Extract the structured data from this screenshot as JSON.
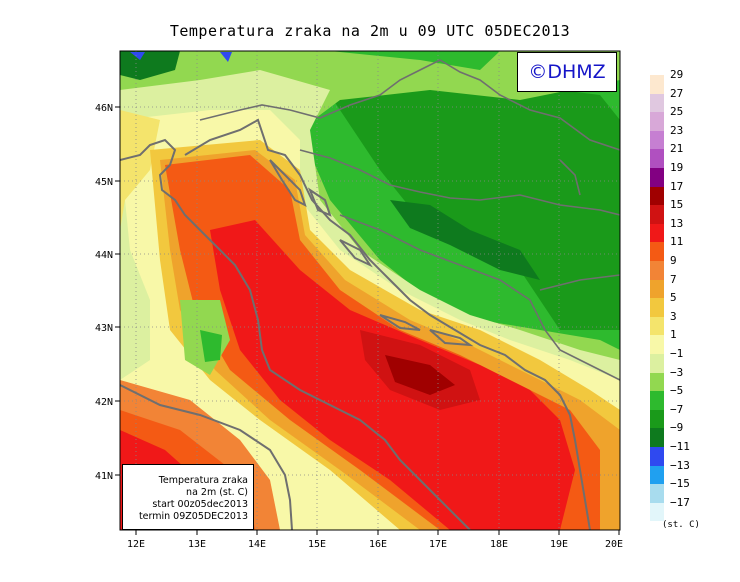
{
  "map": {
    "title": "Temperatura zraka na 2m u 09 UTC 05DEC2013",
    "logo": "©DHMZ",
    "info_box": {
      "line1": "Temperatura zraka",
      "line2": "na 2m (st. C)",
      "line3": "start 00z05dec2013",
      "line4": "termin 09Z05DEC2013"
    },
    "lat_labels": [
      "46N",
      "45N",
      "44N",
      "43N",
      "42N",
      "41N"
    ],
    "lon_labels": [
      "12E",
      "13E",
      "14E",
      "15E",
      "16E",
      "17E",
      "18E",
      "19E",
      "20E"
    ]
  },
  "legend": {
    "unit": "(st. C)",
    "labels": [
      "29",
      "27",
      "25",
      "23",
      "21",
      "19",
      "17",
      "15",
      "13",
      "11",
      "9",
      "7",
      "5",
      "3",
      "1",
      "−1",
      "−3",
      "−5",
      "−7",
      "−9",
      "−11",
      "−13",
      "−15",
      "−17"
    ],
    "colors": [
      "#fde8cf",
      "#e0c8e0",
      "#d8a8d8",
      "#c67fd2",
      "#b050c0",
      "#820082",
      "#a00000",
      "#d01212",
      "#f01818",
      "#f45a14",
      "#f28436",
      "#efa32c",
      "#f2c83e",
      "#f4e46c",
      "#f8f8a8",
      "#dcf0a0",
      "#92d850",
      "#2eba2e",
      "#1a9a1a",
      "#0e7a1e",
      "#2f49f0",
      "#20a0f0",
      "#a8dcee",
      "#e2f6fa"
    ]
  }
}
